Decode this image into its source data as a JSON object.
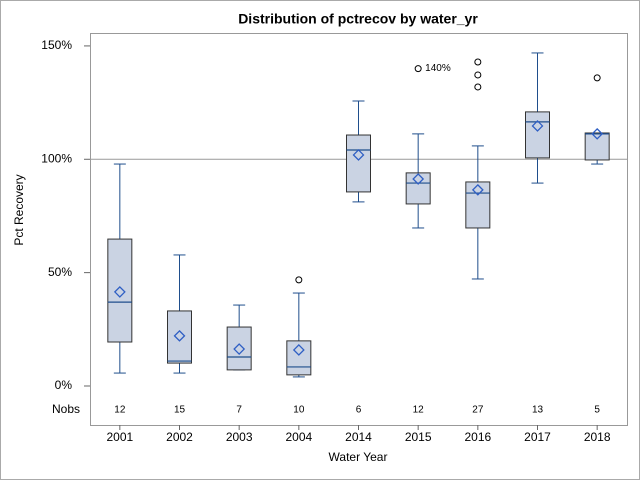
{
  "chart_data": {
    "type": "box",
    "title": "Distribution of pctrecov by water_yr",
    "x_label": "Water Year",
    "y_label": "Pct Recovery",
    "categories": [
      "2001",
      "2002",
      "2003",
      "2004",
      "2014",
      "2015",
      "2016",
      "2017",
      "2018"
    ],
    "boxes": [
      {
        "whisker_low": 5.7,
        "q1": 19.4,
        "median": 37.0,
        "q3": 64.8,
        "whisker_high": 97.9,
        "mean": 41.5,
        "outliers": []
      },
      {
        "whisker_low": 5.7,
        "q1": 10.1,
        "median": 11.0,
        "q3": 33.1,
        "whisker_high": 57.8,
        "mean": 22.1,
        "outliers": []
      },
      {
        "whisker_low": 7.1,
        "q1": 7.1,
        "median": 12.8,
        "q3": 26.0,
        "whisker_high": 35.7,
        "mean": 16.3,
        "outliers": []
      },
      {
        "whisker_low": 4.0,
        "q1": 4.9,
        "median": 8.4,
        "q3": 19.9,
        "whisker_high": 41.0,
        "mean": 15.9,
        "outliers": [
          46.8
        ]
      },
      {
        "whisker_low": 81.2,
        "q1": 85.6,
        "median": 104.1,
        "q3": 110.7,
        "whisker_high": 125.7,
        "mean": 101.9,
        "outliers": []
      },
      {
        "whisker_low": 69.7,
        "q1": 80.3,
        "median": 89.5,
        "q3": 94.0,
        "whisker_high": 111.2,
        "mean": 91.3,
        "outliers": [
          140
        ],
        "outlier_value_labels": [
          "140%"
        ]
      },
      {
        "whisker_low": 47.2,
        "q1": 69.7,
        "median": 85.1,
        "q3": 90.0,
        "whisker_high": 105.9,
        "mean": 86.5,
        "outliers": [
          142.9,
          137.2,
          131.9
        ]
      },
      {
        "whisker_low": 89.5,
        "q1": 100.6,
        "median": 116.5,
        "q3": 120.9,
        "whisker_high": 146.9,
        "mean": 114.7,
        "outliers": []
      },
      {
        "whisker_low": 97.9,
        "q1": 99.7,
        "median": 111.2,
        "q3": 111.6,
        "whisker_high": 111.6,
        "mean": 111.2,
        "outliers": [
          135.9
        ]
      }
    ],
    "nobs_label": "Nobs",
    "nobs": [
      12,
      15,
      7,
      10,
      6,
      12,
      27,
      13,
      5
    ],
    "reference_line": 100,
    "ylim": [
      -5.3,
      155.7
    ],
    "yticks": [
      {
        "value": 0,
        "label": "0%"
      },
      {
        "value": 50,
        "label": "50%"
      },
      {
        "value": 100,
        "label": "100%"
      },
      {
        "value": 150,
        "label": "150%"
      }
    ],
    "box_color": "#cad3e3",
    "whisker_color": "#1f4e8c",
    "mean_color": "#2f5fc4"
  }
}
